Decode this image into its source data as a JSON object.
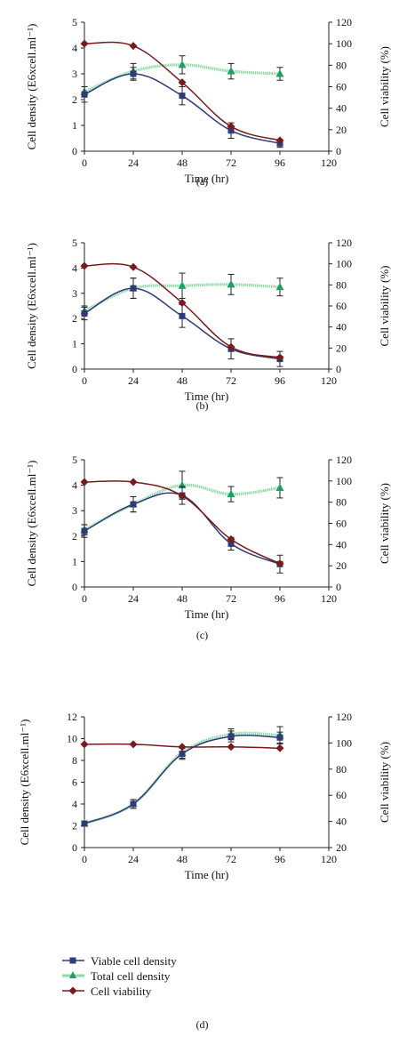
{
  "legend": {
    "viable": "Viable cell density",
    "total": "Total cell density",
    "viability": "Cell viability"
  },
  "colors": {
    "viable": "#2f3a78",
    "total": "#8fd9a8",
    "total_marker": "#1f9e6b",
    "viability": "#7a1a1a"
  },
  "chart_data": [
    {
      "type": "line",
      "panel_label": "(a)",
      "xlabel": "Time (hr)",
      "ylabel": "Cell density (E6xcell.ml⁻¹)",
      "y2label": "Cell viability (%)",
      "xlim": [
        0,
        120
      ],
      "xticks": [
        0,
        24,
        48,
        72,
        96,
        120
      ],
      "ylim": [
        0,
        5
      ],
      "yticks": [
        0,
        1,
        2,
        3,
        4,
        5
      ],
      "y2lim": [
        0,
        120
      ],
      "y2ticks": [
        0,
        20,
        40,
        60,
        80,
        100,
        120
      ],
      "series": [
        {
          "key": "viable",
          "axis": "left",
          "marker": "square",
          "x": [
            0,
            24,
            48,
            72,
            96
          ],
          "y": [
            2.2,
            3.0,
            2.15,
            0.8,
            0.3
          ],
          "err": [
            0.3,
            0.25,
            0.35,
            0.3,
            0.15
          ]
        },
        {
          "key": "total",
          "axis": "left",
          "marker": "triangle",
          "x": [
            0,
            24,
            48,
            72,
            96
          ],
          "y": [
            2.3,
            3.1,
            3.35,
            3.1,
            3.0
          ],
          "err": [
            0.2,
            0.3,
            0.35,
            0.3,
            0.25
          ]
        },
        {
          "key": "viability",
          "axis": "right",
          "marker": "diamond",
          "x": [
            0,
            24,
            48,
            72,
            96
          ],
          "y": [
            100,
            98,
            64,
            23,
            10
          ],
          "err": [
            0,
            0,
            0,
            0,
            0
          ]
        }
      ]
    },
    {
      "type": "line",
      "panel_label": "(b)",
      "xlabel": "Time (hr)",
      "ylabel": "Cell density (E6xcell.ml⁻¹)",
      "y2label": "Cell viability (%)",
      "xlim": [
        0,
        120
      ],
      "xticks": [
        0,
        24,
        48,
        72,
        96,
        120
      ],
      "ylim": [
        0,
        5
      ],
      "yticks": [
        0,
        1,
        2,
        3,
        4,
        5
      ],
      "y2lim": [
        0,
        120
      ],
      "y2ticks": [
        0,
        20,
        40,
        60,
        80,
        100,
        120
      ],
      "series": [
        {
          "key": "viable",
          "axis": "left",
          "marker": "square",
          "x": [
            0,
            24,
            48,
            72,
            96
          ],
          "y": [
            2.2,
            3.2,
            2.1,
            0.8,
            0.4
          ],
          "err": [
            0.25,
            0.4,
            0.45,
            0.4,
            0.3
          ]
        },
        {
          "key": "total",
          "axis": "left",
          "marker": "triangle",
          "x": [
            0,
            24,
            48,
            72,
            96
          ],
          "y": [
            2.3,
            3.2,
            3.3,
            3.35,
            3.25
          ],
          "err": [
            0.2,
            0.4,
            0.5,
            0.4,
            0.35
          ]
        },
        {
          "key": "viability",
          "axis": "right",
          "marker": "diamond",
          "x": [
            0,
            24,
            48,
            72,
            96
          ],
          "y": [
            98,
            97,
            63,
            21,
            11
          ],
          "err": [
            0,
            0,
            0,
            0,
            0
          ]
        }
      ]
    },
    {
      "type": "line",
      "panel_label": "(c)",
      "xlabel": "Time (hr)",
      "ylabel": "Cell density (E6xcell.ml⁻¹)",
      "y2label": "Cell viability (%)",
      "xlim": [
        0,
        120
      ],
      "xticks": [
        0,
        24,
        48,
        72,
        96,
        120
      ],
      "ylim": [
        0,
        5
      ],
      "yticks": [
        0,
        1,
        2,
        3,
        4,
        5
      ],
      "y2lim": [
        0,
        120
      ],
      "y2ticks": [
        0,
        20,
        40,
        60,
        80,
        100,
        120
      ],
      "series": [
        {
          "key": "viable",
          "axis": "left",
          "marker": "square",
          "x": [
            0,
            24,
            48,
            72,
            96
          ],
          "y": [
            2.2,
            3.25,
            3.6,
            1.7,
            0.9
          ],
          "err": [
            0.25,
            0.3,
            0.35,
            0.25,
            0.35
          ]
        },
        {
          "key": "total",
          "axis": "left",
          "marker": "triangle",
          "x": [
            0,
            24,
            48,
            72,
            96
          ],
          "y": [
            2.25,
            3.25,
            4.0,
            3.65,
            3.9
          ],
          "err": [
            0.2,
            0.3,
            0.55,
            0.3,
            0.4
          ]
        },
        {
          "key": "viability",
          "axis": "right",
          "marker": "diamond",
          "x": [
            0,
            24,
            48,
            72,
            96
          ],
          "y": [
            99,
            99,
            86,
            45,
            22
          ],
          "err": [
            0,
            0,
            0,
            0,
            0
          ]
        }
      ]
    },
    {
      "type": "line",
      "panel_label": "(d)",
      "xlabel": "Time (hr)",
      "ylabel": "Cell density (E6xcell.ml⁻¹)",
      "y2label": "Cell viability (%)",
      "xlim": [
        0,
        120
      ],
      "xticks": [
        0,
        24,
        48,
        72,
        96,
        120
      ],
      "ylim": [
        0,
        12
      ],
      "yticks": [
        0,
        2,
        4,
        6,
        8,
        10,
        12
      ],
      "y2lim": [
        20,
        120
      ],
      "y2ticks": [
        20,
        40,
        60,
        80,
        100,
        120
      ],
      "series": [
        {
          "key": "viable",
          "axis": "left",
          "marker": "square",
          "x": [
            0,
            24,
            48,
            72,
            96
          ],
          "y": [
            2.2,
            4.0,
            8.6,
            10.2,
            10.1
          ],
          "err": [
            0.2,
            0.4,
            0.5,
            0.5,
            0.5
          ]
        },
        {
          "key": "total",
          "axis": "left",
          "marker": "triangle",
          "x": [
            0,
            24,
            48,
            72,
            96
          ],
          "y": [
            2.2,
            4.0,
            8.7,
            10.4,
            10.3
          ],
          "err": [
            0.2,
            0.4,
            0.5,
            0.5,
            0.8
          ]
        },
        {
          "key": "viability",
          "axis": "right",
          "marker": "diamond",
          "x": [
            0,
            24,
            48,
            72,
            96
          ],
          "y": [
            99,
            99,
            97,
            97,
            96
          ],
          "err": [
            0,
            0,
            0,
            0,
            0
          ]
        }
      ]
    }
  ]
}
